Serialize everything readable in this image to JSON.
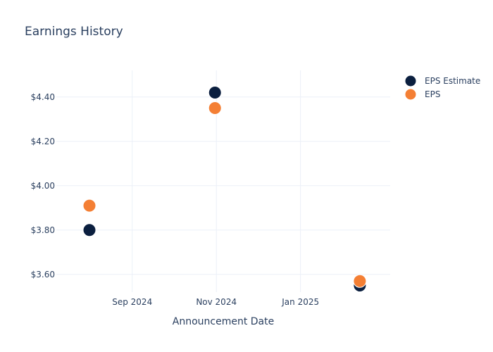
{
  "chart_data": {
    "type": "scatter",
    "title": "Earnings History",
    "xlabel": "Announcement Date",
    "ylabel": "",
    "x_ticks": [
      {
        "date": "2024-09-01",
        "label": "Sep 2024"
      },
      {
        "date": "2024-11-01",
        "label": "Nov 2024"
      },
      {
        "date": "2025-01-01",
        "label": "Jan 2025"
      }
    ],
    "y_ticks": [
      {
        "value": 3.6,
        "label": "$3.60"
      },
      {
        "value": 3.8,
        "label": "$3.80"
      },
      {
        "value": 4.0,
        "label": "$4.00"
      },
      {
        "value": 4.2,
        "label": "$4.20"
      },
      {
        "value": 4.4,
        "label": "$4.40"
      }
    ],
    "xlim": [
      "2024-07-08",
      "2025-03-07"
    ],
    "ylim": [
      3.52,
      4.52
    ],
    "grid": true,
    "legend_position": "top-right",
    "series": [
      {
        "name": "EPS Estimate",
        "color": "#0b1f3f",
        "points": [
          {
            "x": "2024-08-01",
            "y": 3.8
          },
          {
            "x": "2024-10-31",
            "y": 4.42
          },
          {
            "x": "2025-02-13",
            "y": 3.55
          }
        ]
      },
      {
        "name": "EPS",
        "color": "#f47f34",
        "points": [
          {
            "x": "2024-08-01",
            "y": 3.91
          },
          {
            "x": "2024-10-31",
            "y": 4.35
          },
          {
            "x": "2025-02-13",
            "y": 3.57
          }
        ]
      }
    ]
  }
}
